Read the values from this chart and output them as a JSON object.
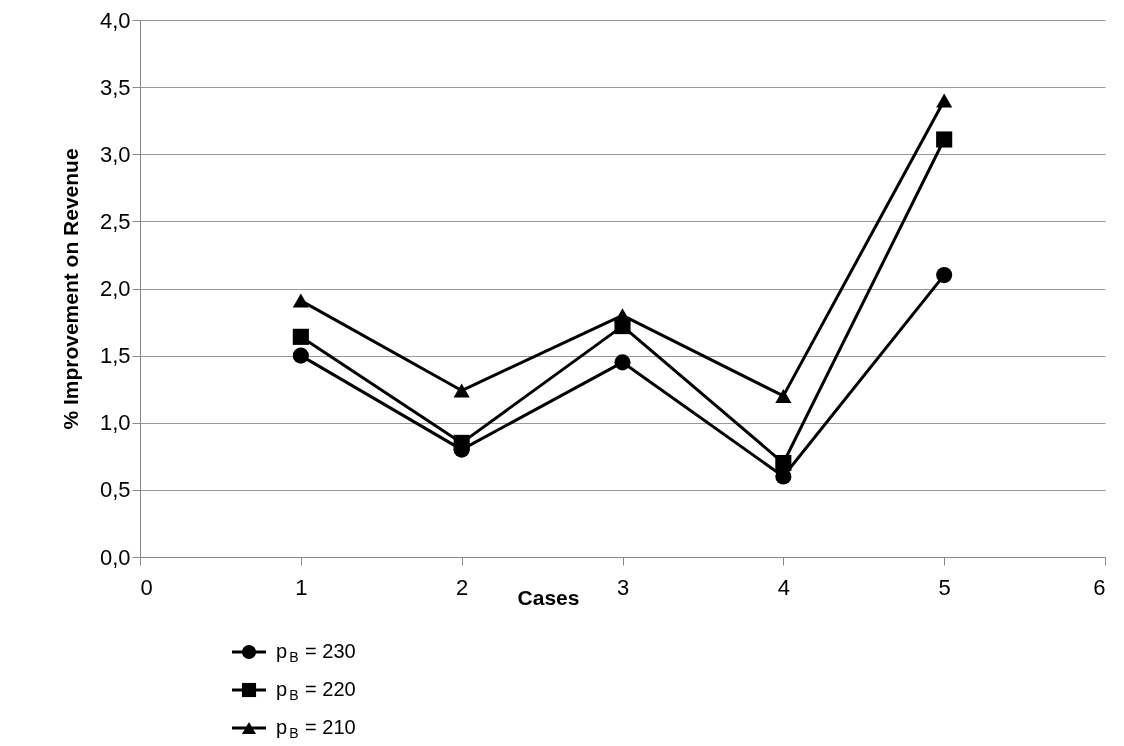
{
  "chart_data": {
    "type": "line",
    "ylabel": "% Improvement on Revenue",
    "xlabel": "Cases",
    "x": [
      1,
      2,
      3,
      4,
      5
    ],
    "series": [
      {
        "name": "p$_{B}$ = 230",
        "color": "#000000",
        "marker": "circle",
        "values": [
          1.5,
          0.8,
          1.45,
          0.6,
          2.1
        ]
      },
      {
        "name": "p$_{B}$ = 220",
        "color": "#000000",
        "marker": "square",
        "values": [
          1.64,
          0.85,
          1.72,
          0.7,
          3.11
        ]
      },
      {
        "name": "p$_{B}$ = 210",
        "color": "#000000",
        "marker": "triangle",
        "values": [
          1.91,
          1.24,
          1.8,
          1.2,
          3.4
        ]
      }
    ],
    "xlim": [
      0,
      6
    ],
    "xticks": [
      0,
      1,
      2,
      3,
      4,
      5,
      6
    ],
    "ylim": [
      0,
      4
    ],
    "yticks": [
      {
        "value": 0,
        "label": "0,0"
      },
      {
        "value": 0.5,
        "label": "0,5"
      },
      {
        "value": 1,
        "label": "1,0"
      },
      {
        "value": 1.5,
        "label": "1,5"
      },
      {
        "value": 2,
        "label": "2,0"
      },
      {
        "value": 2.5,
        "label": "2,5"
      },
      {
        "value": 3,
        "label": "3,0"
      },
      {
        "value": 3.5,
        "label": "3,5"
      },
      {
        "value": 4,
        "label": "4,0"
      }
    ],
    "grid": "y",
    "legend": "bottom",
    "line_style": "solid"
  }
}
